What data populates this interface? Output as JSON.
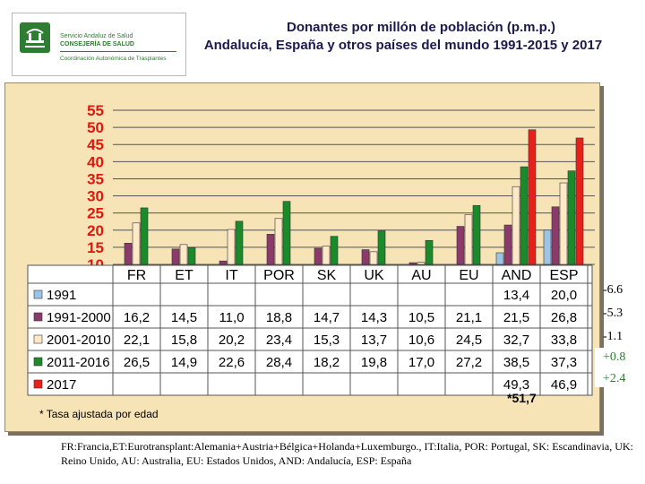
{
  "logo": {
    "line1": "Servicio Andaluz de Salud",
    "line2": "CONSEJERÍA DE SALUD",
    "line3": "Coordinación Autonómica de Trasplantes"
  },
  "title": {
    "line1": "Donantes por millón de población (p.m.p.)",
    "line2": "Andalucía, España y otros países del mundo 1991-2015 y 2017"
  },
  "chart_data": {
    "type": "bar",
    "categories": [
      "FR",
      "ET",
      "IT",
      "POR",
      "SK",
      "UK",
      "AU",
      "EU",
      "AND",
      "ESP"
    ],
    "series": [
      {
        "name": "1991",
        "color": "#9dc3e6",
        "values": [
          null,
          null,
          null,
          null,
          null,
          null,
          null,
          null,
          13.4,
          20.0
        ],
        "labels": [
          "",
          "",
          "",
          "",
          "",
          "",
          "",
          "",
          "13,4",
          "20,0"
        ]
      },
      {
        "name": "1991-2000",
        "color": "#8b3a6b",
        "values": [
          16.2,
          14.5,
          11.0,
          18.8,
          14.7,
          14.3,
          10.5,
          21.1,
          21.5,
          26.8
        ],
        "labels": [
          "16,2",
          "14,5",
          "11,0",
          "18,8",
          "14,7",
          "14,3",
          "10,5",
          "21,1",
          "21,5",
          "26,8"
        ]
      },
      {
        "name": "2001-2010",
        "color": "#fde9c8",
        "values": [
          22.1,
          15.8,
          20.2,
          23.4,
          15.3,
          13.7,
          10.6,
          24.5,
          32.7,
          33.8
        ],
        "labels": [
          "22,1",
          "15,8",
          "20,2",
          "23,4",
          "15,3",
          "13,7",
          "10,6",
          "24,5",
          "32,7",
          "33,8"
        ]
      },
      {
        "name": "2011-2016",
        "color": "#1a8a2a",
        "values": [
          26.5,
          14.9,
          22.6,
          28.4,
          18.2,
          19.8,
          17.0,
          27.2,
          38.5,
          37.3
        ],
        "labels": [
          "26,5",
          "14,9",
          "22,6",
          "28,4",
          "18,2",
          "19,8",
          "17,0",
          "27,2",
          "38,5",
          "37,3"
        ]
      },
      {
        "name": "2017",
        "color": "#e8201a",
        "values": [
          null,
          null,
          null,
          null,
          null,
          null,
          null,
          null,
          49.3,
          46.9
        ],
        "labels": [
          "",
          "",
          "",
          "",
          "",
          "",
          "",
          "",
          "49,3",
          "46,9"
        ]
      }
    ],
    "yticks": [
      "55",
      "50",
      "45",
      "40",
      "35",
      "30",
      "25",
      "20",
      "15",
      "10"
    ],
    "ylim": [
      10,
      55
    ],
    "grid": true,
    "legend": "table-left"
  },
  "extra_value": "*51,7",
  "changes": [
    {
      "text": "-6.6",
      "color": "#000000"
    },
    {
      "text": "-5.3",
      "color": "#000000"
    },
    {
      "text": "-1.1",
      "color": "#000000"
    },
    {
      "text": "+0.8",
      "color": "#2e7d32"
    },
    {
      "text": "+2.4",
      "color": "#2e7d32"
    }
  ],
  "footnote": "* Tasa ajustada por edad",
  "abbreviations": "FR:Francia,ET:Eurotransplant:Alemania+Austria+Bélgica+Holanda+Luxemburgo., IT:Italia, POR: Portugal, SK: Escandinavia, UK: Reino Unido, AU: Australia, EU: Estados Unidos, AND: Andalucía, ESP: España"
}
